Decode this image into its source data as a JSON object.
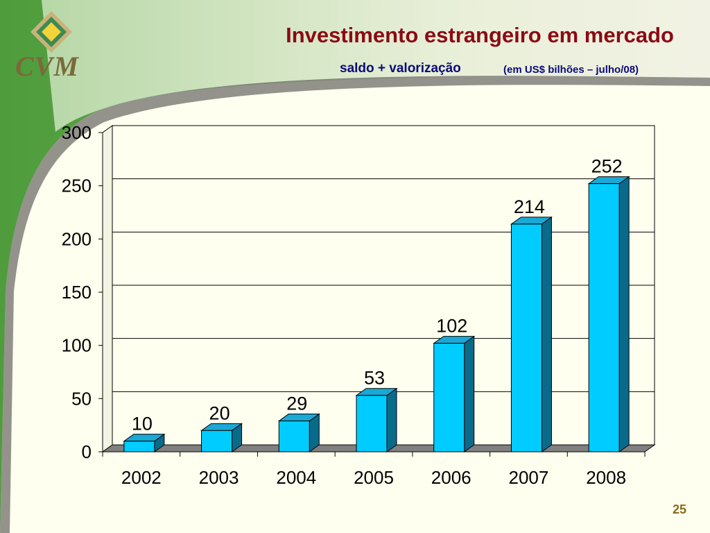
{
  "header": {
    "title": "Investimento estrangeiro em mercado",
    "subtitle": "saldo + valorização",
    "unit_note": "(em US$ bilhões – julho/08)"
  },
  "logo": {
    "text": "CVM"
  },
  "footer": {
    "page_number": "25"
  },
  "colors": {
    "background": "#fffff0",
    "title": "#8b0a14",
    "subtitle": "#0b0b7a",
    "bar_front": "#00ccff",
    "bar_side": "#0a6a8a",
    "bar_top": "#1aa8d4",
    "floor": "#808080",
    "sidebar_green": "#5aa545"
  },
  "chart_data": {
    "type": "bar",
    "categories": [
      "2002",
      "2003",
      "2004",
      "2005",
      "2006",
      "2007",
      "2008"
    ],
    "values": [
      10,
      20,
      29,
      53,
      102,
      214,
      252
    ],
    "data_labels": [
      "10",
      "20",
      "29",
      "53",
      "102",
      "214",
      "252"
    ],
    "ylim": [
      0,
      300
    ],
    "yticks": [
      0,
      50,
      100,
      150,
      200,
      250,
      300
    ],
    "grid": true,
    "legend": "none",
    "style": "3d"
  }
}
